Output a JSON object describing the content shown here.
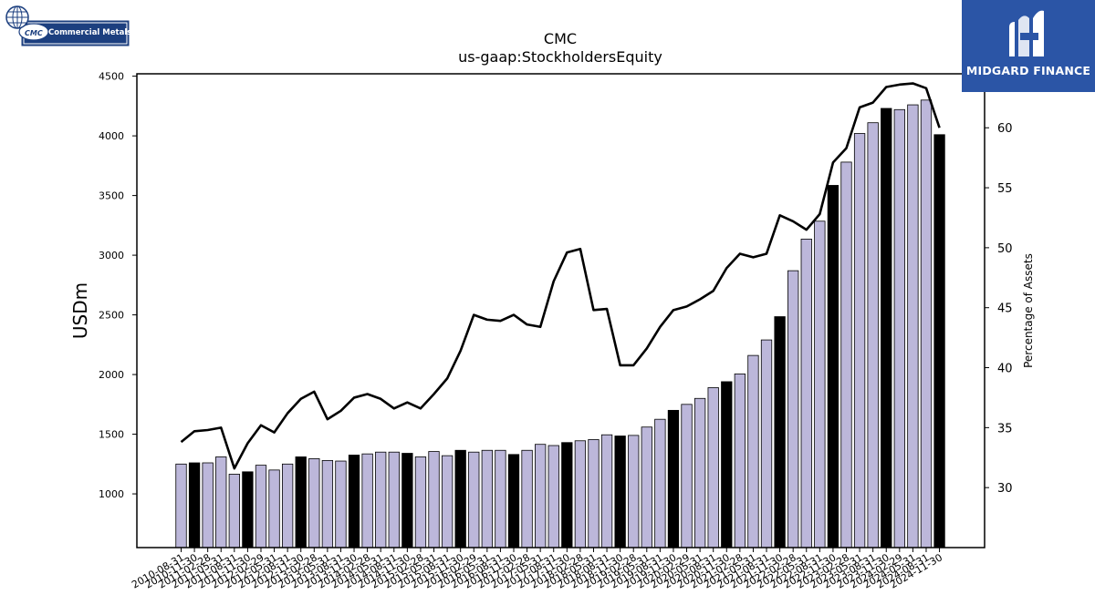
{
  "logos": {
    "left_text": "Commercial Metals",
    "left_short": "CMC",
    "right_text": "MIDGARD FINANCE"
  },
  "chart_data": {
    "type": "bar",
    "title": "CMC",
    "subtitle": "us-gaap:StockholdersEquity",
    "ylabel": "USDm",
    "y2label": "Percentage of Assets",
    "ylim": [
      550,
      4520
    ],
    "y2lim": [
      25,
      64.5
    ],
    "yticks": [
      1000,
      1500,
      2000,
      2500,
      3000,
      3500,
      4000,
      4500
    ],
    "y2ticks": [
      30,
      35,
      40,
      45,
      50,
      55,
      60
    ],
    "colors": {
      "bar_light": "#bcb7da",
      "bar_dark": "#000000",
      "line": "#000000"
    },
    "categories": [
      "2010-08-31",
      "2010-11-30",
      "2011-02-28",
      "2011-05-31",
      "2011-08-31",
      "2011-11-30",
      "2012-02-29",
      "2012-05-31",
      "2012-08-31",
      "2012-11-30",
      "2013-02-28",
      "2013-05-31",
      "2013-08-31",
      "2013-11-30",
      "2014-02-28",
      "2014-05-31",
      "2014-08-31",
      "2014-11-30",
      "2015-02-28",
      "2015-05-31",
      "2015-08-31",
      "2015-11-30",
      "2016-02-29",
      "2016-05-31",
      "2016-08-31",
      "2016-11-30",
      "2017-02-28",
      "2017-05-31",
      "2017-08-31",
      "2017-11-30",
      "2018-02-28",
      "2018-05-31",
      "2018-08-31",
      "2018-11-30",
      "2019-02-28",
      "2019-05-31",
      "2019-08-31",
      "2019-11-30",
      "2020-02-29",
      "2020-05-31",
      "2020-08-31",
      "2020-11-30",
      "2021-02-28",
      "2021-05-31",
      "2021-08-31",
      "2021-11-30",
      "2022-02-28",
      "2022-05-31",
      "2022-08-31",
      "2022-11-30",
      "2023-02-28",
      "2023-05-31",
      "2023-08-31",
      "2023-11-30",
      "2024-02-29",
      "2024-05-31",
      "2024-08-31",
      "2024-11-30"
    ],
    "series": [
      {
        "name": "StockholdersEquity",
        "axis": "left",
        "values": [
          1250,
          1260,
          1260,
          1310,
          1165,
          1185,
          1240,
          1200,
          1250,
          1310,
          1295,
          1280,
          1275,
          1325,
          1335,
          1350,
          1350,
          1340,
          1310,
          1355,
          1320,
          1365,
          1350,
          1365,
          1365,
          1330,
          1365,
          1415,
          1405,
          1430,
          1445,
          1455,
          1495,
          1485,
          1490,
          1560,
          1625,
          1700,
          1750,
          1800,
          1890,
          1940,
          2005,
          2160,
          2290,
          2485,
          2870,
          3135,
          3285,
          3585,
          3780,
          4020,
          4110,
          4230,
          4220,
          4260,
          4300,
          4010
        ],
        "highlight_every": 4,
        "highlight_offset": 1
      },
      {
        "name": "Percentage of Assets",
        "axis": "right",
        "type": "line",
        "values": [
          33.8,
          34.7,
          34.8,
          35.0,
          31.6,
          33.7,
          35.2,
          34.6,
          36.2,
          37.4,
          38.0,
          35.7,
          36.4,
          37.5,
          37.8,
          37.4,
          36.6,
          37.1,
          36.6,
          37.8,
          39.1,
          41.4,
          44.4,
          44.0,
          43.9,
          44.4,
          43.6,
          43.4,
          47.2,
          49.6,
          49.9,
          44.8,
          44.9,
          40.2,
          40.2,
          41.6,
          43.4,
          44.8,
          45.1,
          45.7,
          46.4,
          48.3,
          49.5,
          49.2,
          49.5,
          52.7,
          52.2,
          51.5,
          52.8,
          57.1,
          58.3,
          61.7,
          62.1,
          63.4,
          63.6,
          63.7,
          63.3,
          60.0
        ]
      }
    ]
  }
}
